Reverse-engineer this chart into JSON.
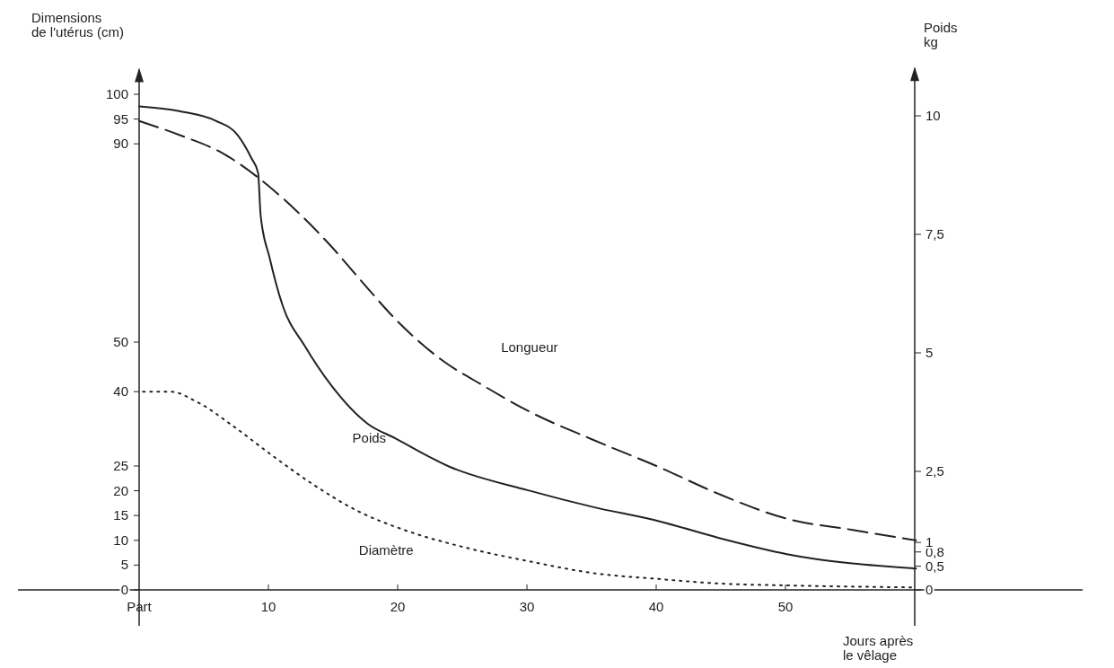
{
  "chart_data": {
    "type": "line",
    "ylabel": "Dimensions\nde l'utérus (cm)",
    "y2label": "Poids\nkg",
    "xlabel": "Jours après\nle vêlage",
    "xlim": [
      0,
      73
    ],
    "xticks": [
      {
        "value": 0,
        "label": "Part"
      },
      10,
      20,
      30,
      40,
      50
    ],
    "ylim": [
      0,
      105
    ],
    "yticks": [
      0,
      5,
      10,
      15,
      20,
      25,
      40,
      50,
      90,
      95,
      100
    ],
    "y2lim": [
      0,
      11
    ],
    "y2ticks": [
      0,
      {
        "value": 0.5,
        "label": "0,5"
      },
      {
        "value": 0.8,
        "label": "0,8"
      },
      1,
      {
        "value": 2.5,
        "label": "2,5"
      },
      5,
      {
        "value": 7.5,
        "label": "7,5"
      },
      10
    ],
    "series": [
      {
        "name": "Longueur",
        "color": "#222222",
        "line_style": "dashed",
        "x": [
          0,
          3.1,
          6.6,
          9.4,
          12.2,
          14.9,
          17,
          19.8,
          23.3,
          26.7,
          30.1,
          35.1,
          40.2,
          44.8,
          50.2,
          55.2,
          60.1
        ],
        "values": [
          94.6,
          91.8,
          87.9,
          82.8,
          76.4,
          69.2,
          62.9,
          54.7,
          46.6,
          41.1,
          36.1,
          30.3,
          24.8,
          19.4,
          14.3,
          12.1,
          10
        ]
      },
      {
        "name": "Poids",
        "color": "#222222",
        "line_style": "solid",
        "axis": "y2",
        "x": [
          0,
          3.1,
          5.9,
          7.6,
          8.7,
          9.2,
          9.4,
          10.1,
          11.1,
          12.8,
          14.9,
          17.7,
          19.8,
          24,
          30.1,
          35.1,
          40.2,
          44.8,
          50.2,
          60.1
        ],
        "values": [
          10.2,
          10.1,
          9.9,
          9.6,
          9.1,
          8.8,
          7.9,
          7,
          6,
          5.15,
          4.3,
          3.5,
          3.2,
          2.6,
          2.1,
          1.75,
          1.45,
          1.1,
          0.75,
          0.45
        ]
      },
      {
        "name": "Diamètre",
        "color": "#222222",
        "line_style": "dotted",
        "x": [
          0.3,
          2.4,
          4.5,
          7.3,
          10.1,
          13.5,
          17,
          20.5,
          25.3,
          30.1,
          35.1,
          40.2,
          44.8,
          50.2,
          60.1
        ],
        "values": [
          40,
          40,
          37.9,
          33,
          27.5,
          21.2,
          15.8,
          12.1,
          8.5,
          5.8,
          3.4,
          2.2,
          1.3,
          0.9,
          0.5
        ]
      }
    ]
  }
}
